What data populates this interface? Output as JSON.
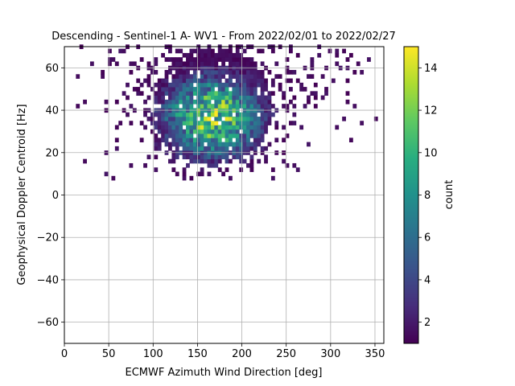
{
  "chart_data": {
    "type": "heatmap",
    "title": "Descending - Sentinel-1 A- WV1 - From 2022/02/01 to 2022/02/27",
    "xlabel": "ECMWF Azimuth Wind Direction [deg]",
    "ylabel": "Geophysical Doppler Centroid [Hz]",
    "xlim": [
      0,
      360
    ],
    "ylim": [
      -70,
      70
    ],
    "xticks": [
      0,
      50,
      100,
      150,
      200,
      250,
      300,
      350
    ],
    "yticks": [
      -60,
      -40,
      -20,
      0,
      20,
      40,
      60
    ],
    "grid": true,
    "bin_width": [
      4,
      2
    ],
    "colorbar": {
      "label": "count",
      "range": [
        1,
        15
      ],
      "ticks": [
        2,
        4,
        6,
        8,
        10,
        12,
        14
      ],
      "colormap": "viridis"
    },
    "density_model": {
      "center": [
        165,
        36
      ],
      "spread": [
        38,
        13
      ],
      "peak_count": 14,
      "x_extent": [
        5,
        355
      ],
      "y_extent": [
        7,
        70
      ]
    }
  }
}
